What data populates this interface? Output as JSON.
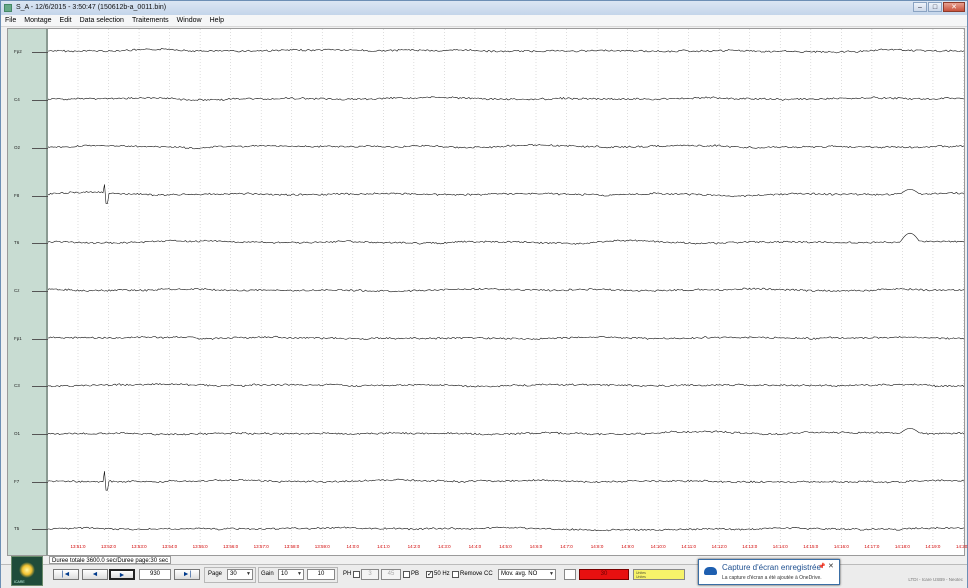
{
  "window": {
    "title": "S_A - 12/6/2015 - 3:50:47 (150612b-a_0011.bin)",
    "minimize": "–",
    "maximize": "□",
    "close": "✕"
  },
  "menu": [
    "File",
    "Montage",
    "Edit",
    "Data selection",
    "Traitements",
    "Window",
    "Help"
  ],
  "channels": [
    "Fp2",
    "C4",
    "O2",
    "F8",
    "T6",
    "Cz",
    "Fp1",
    "C3",
    "O1",
    "F7",
    "T5"
  ],
  "time_labels": [
    "13:51:0",
    "13:52:0",
    "13:53:0",
    "13:54:0",
    "13:55:0",
    "13:56:0",
    "13:57:0",
    "13:58:0",
    "13:59:0",
    "14:0:0",
    "14:1:0",
    "14:2:0",
    "14:3:0",
    "14:4:0",
    "14:5:0",
    "14:6:0",
    "14:7:0",
    "14:8:0",
    "14:9:0",
    "14:10:0",
    "14:11:0",
    "14:12:0",
    "14:13:0",
    "14:14:0",
    "14:15:0",
    "14:16:0",
    "14:17:0",
    "14:18:0",
    "14:19:0",
    "14:20:0"
  ],
  "status": {
    "text": "Duree totale 3600.0 sec/Duree page:30 sec"
  },
  "logo": {
    "label": "ICARE"
  },
  "controls": {
    "nav_first": "|◄",
    "nav_prev": "◄",
    "nav_play": "►",
    "position": "930",
    "nav_last": "►|",
    "page_label": "Page",
    "page_value": "30",
    "gain_label": "Gain",
    "gain_value": "10",
    "gain_field": "10",
    "ph_label": "PH",
    "ph_value": "3",
    "pb_value": "45",
    "pb_label": "PB",
    "hz50_label": "50 Hz",
    "hz50_check": "✓",
    "remove_cc_label": "Remove CC",
    "mov_avg_label": "Mov. avg. NO",
    "red_value": "30",
    "yellow_line1": "Unites",
    "yellow_line2": "Unites"
  },
  "toast": {
    "title": "Capture d'écran enregistrée",
    "body": "La capture d'écran a été ajoutée à OneDrive.",
    "pin": "📌",
    "close": "✕"
  },
  "footer": "LTDI - Icare USB9 - Neotec"
}
